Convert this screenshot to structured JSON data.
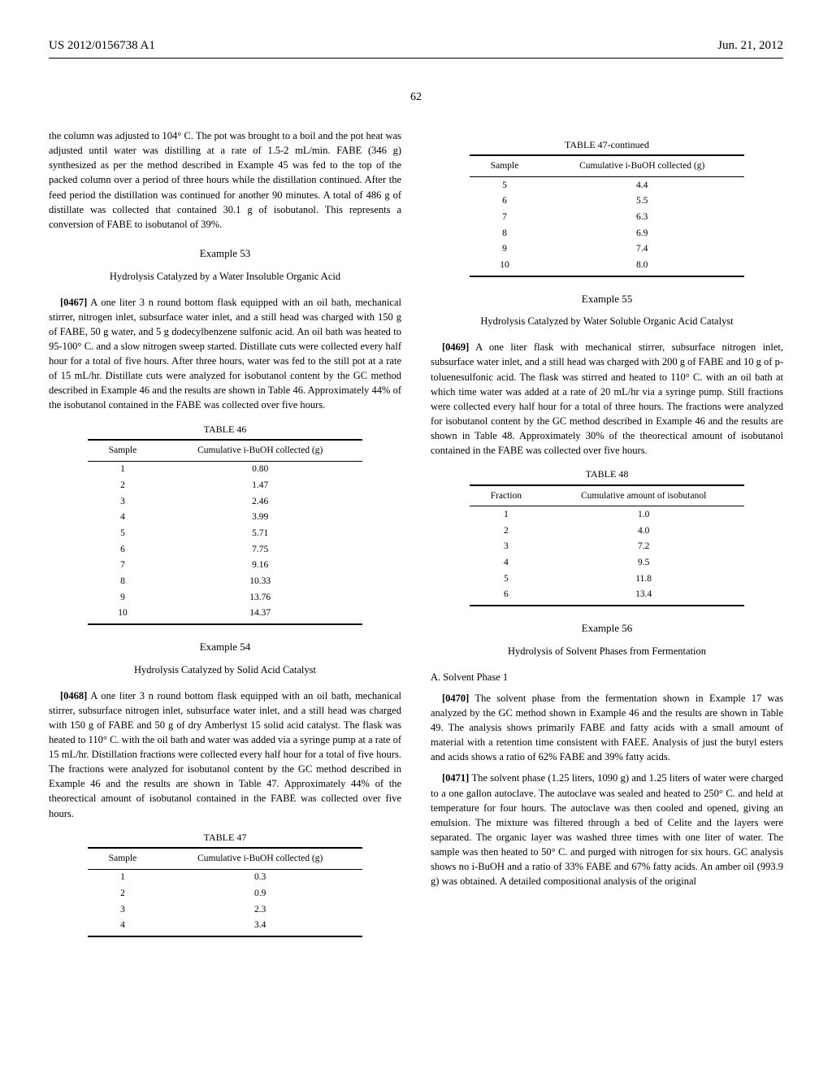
{
  "header": {
    "left": "US 2012/0156738 A1",
    "right": "Jun. 21, 2012"
  },
  "page_number": "62",
  "left_column": {
    "intro_para": "the column was adjusted to 104° C. The pot was brought to a boil and the pot heat was adjusted until water was distilling at a rate of 1.5-2 mL/min. FABE (346 g) synthesized as per the method described in Example 45 was fed to the top of the packed column over a period of three hours while the distillation continued. After the feed period the distillation was continued for another 90 minutes. A total of 486 g of distillate was collected that contained 30.1 g of isobutanol. This represents a conversion of FABE to isobutanol of 39%.",
    "ex53": {
      "heading": "Example 53",
      "subtitle": "Hydrolysis Catalyzed by a Water Insoluble Organic Acid",
      "para_num": "[0467]",
      "para": "A one liter 3 n round bottom flask equipped with an oil bath, mechanical stirrer, nitrogen inlet, subsurface water inlet, and a still head was charged with 150 g of FABE, 50 g water, and 5 g dodecylbenzene sulfonic acid. An oil bath was heated to 95-100° C. and a slow nitrogen sweep started. Distillate cuts were collected every half hour for a total of five hours. After three hours, water was fed to the still pot at a rate of 15 mL/hr. Distillate cuts were analyzed for isobutanol content by the GC method described in Example 46 and the results are shown in Table 46. Approximately 44% of the isobutanol contained in the FABE was collected over five hours."
    },
    "table46": {
      "caption": "TABLE 46",
      "headers": [
        "Sample",
        "Cumulative i-BuOH collected (g)"
      ],
      "rows": [
        [
          "1",
          "0.80"
        ],
        [
          "2",
          "1.47"
        ],
        [
          "3",
          "2.46"
        ],
        [
          "4",
          "3.99"
        ],
        [
          "5",
          "5.71"
        ],
        [
          "6",
          "7.75"
        ],
        [
          "7",
          "9.16"
        ],
        [
          "8",
          "10.33"
        ],
        [
          "9",
          "13.76"
        ],
        [
          "10",
          "14.37"
        ]
      ]
    },
    "ex54": {
      "heading": "Example 54",
      "subtitle": "Hydrolysis Catalyzed by Solid Acid Catalyst",
      "para_num": "[0468]",
      "para": "A one liter 3 n round bottom flask equipped with an oil bath, mechanical stirrer, subsurface nitrogen inlet, subsurface water inlet, and a still head was charged with 150 g of FABE and 50 g of dry Amberlyst 15 solid acid catalyst. The flask was heated to 110° C. with the oil bath and water was added via a syringe pump at a rate of 15 mL/hr. Distillation fractions were collected every half hour for a total of five hours. The fractions were analyzed for isobutanol content by the GC method described in Example 46 and the results are shown in Table 47. Approximately 44% of the theorectical amount of isobutanol contained in the FABE was collected over five hours."
    },
    "table47": {
      "caption": "TABLE 47",
      "headers": [
        "Sample",
        "Cumulative i-BuOH collected (g)"
      ],
      "rows": [
        [
          "1",
          "0.3"
        ],
        [
          "2",
          "0.9"
        ],
        [
          "3",
          "2.3"
        ],
        [
          "4",
          "3.4"
        ]
      ]
    }
  },
  "right_column": {
    "table47cont": {
      "caption": "TABLE 47-continued",
      "headers": [
        "Sample",
        "Cumulative i-BuOH collected (g)"
      ],
      "rows": [
        [
          "5",
          "4.4"
        ],
        [
          "6",
          "5.5"
        ],
        [
          "7",
          "6.3"
        ],
        [
          "8",
          "6.9"
        ],
        [
          "9",
          "7.4"
        ],
        [
          "10",
          "8.0"
        ]
      ]
    },
    "ex55": {
      "heading": "Example 55",
      "subtitle": "Hydrolysis Catalyzed by Water Soluble Organic Acid Catalyst",
      "para_num": "[0469]",
      "para": "A one liter flask with mechanical stirrer, subsurface nitrogen inlet, subsurface water inlet, and a still head was charged with 200 g of FABE and 10 g of p-toluenesulfonic acid. The flask was stirred and heated to 110° C. with an oil bath at which time water was added at a rate of 20 mL/hr via a syringe pump. Still fractions were collected every half hour for a total of three hours. The fractions were analyzed for isobutanol content by the GC method described in Example 46 and the results are shown in Table 48. Approximately 30% of the theorectical amount of isobutanol contained in the FABE was collected over five hours."
    },
    "table48": {
      "caption": "TABLE 48",
      "headers": [
        "Fraction",
        "Cumulative amount of isobutanol"
      ],
      "rows": [
        [
          "1",
          "1.0"
        ],
        [
          "2",
          "4.0"
        ],
        [
          "3",
          "7.2"
        ],
        [
          "4",
          "9.5"
        ],
        [
          "5",
          "11.8"
        ],
        [
          "6",
          "13.4"
        ]
      ]
    },
    "ex56": {
      "heading": "Example 56",
      "subtitle": "Hydrolysis of Solvent Phases from Fermentation",
      "section_a": "A. Solvent Phase 1",
      "para1_num": "[0470]",
      "para1": "The solvent phase from the fermentation shown in Example 17 was analyzed by the GC method shown in Example 46 and the results are shown in Table 49. The analysis shows primarily FABE and fatty acids with a small amount of material with a retention time consistent with FAEE. Analysis of just the butyl esters and acids shows a ratio of 62% FABE and 39% fatty acids.",
      "para2_num": "[0471]",
      "para2": "The solvent phase (1.25 liters, 1090 g) and 1.25 liters of water were charged to a one gallon autoclave. The autoclave was sealed and heated to 250° C. and held at temperature for four hours. The autoclave was then cooled and opened, giving an emulsion. The mixture was filtered through a bed of Celite and the layers were separated. The organic layer was washed three times with one liter of water. The sample was then heated to 50° C. and purged with nitrogen for six hours. GC analysis shows no i-BuOH and a ratio of 33% FABE and 67% fatty acids. An amber oil (993.9 g) was obtained. A detailed compositional analysis of the original"
    }
  }
}
